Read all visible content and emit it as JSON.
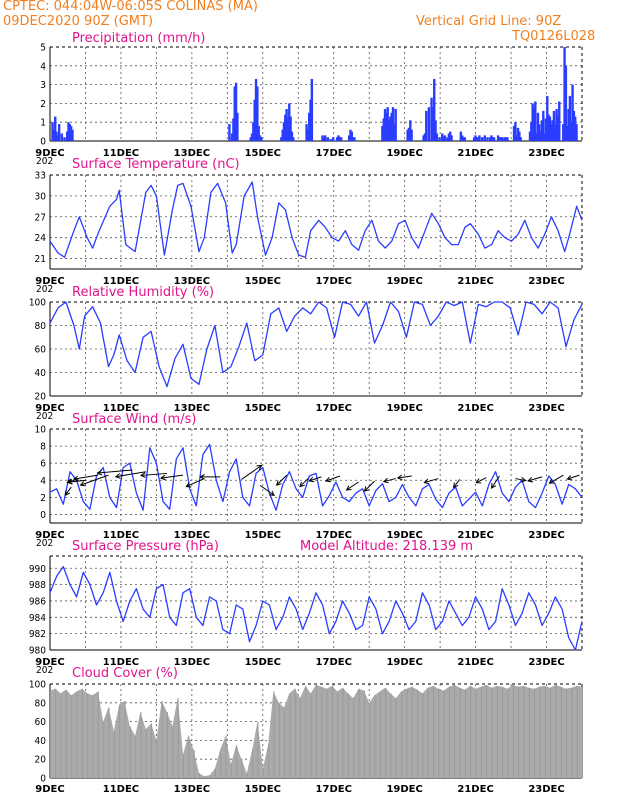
{
  "header": {
    "line1": "CPTEC:   044:04W-06:05S   COLINAS (MA)",
    "line2": "09DEC2020 90Z (GMT)",
    "grid_note": "Vertical Grid Line: 90Z",
    "code": "TQ0126L028"
  },
  "x_axis": {
    "day_labels": [
      "9DEC",
      "11DEC",
      "13DEC",
      "15DEC",
      "17DEC",
      "19DEC",
      "21DEC",
      "23DEC"
    ],
    "year_fragment": "202"
  },
  "chart_data": [
    {
      "type": "bar",
      "title": "Precipitation (mm/h)",
      "ylim": [
        0,
        5
      ],
      "yticks": [
        0,
        1,
        2,
        3,
        4,
        5
      ],
      "color": "#2a3dff",
      "x": [
        0.05,
        0.1,
        0.15,
        0.2,
        0.25,
        0.3,
        0.4,
        0.5,
        0.6,
        0.65,
        0.7,
        0.75,
        0.8,
        6.7,
        6.8,
        6.85,
        6.9,
        6.95,
        7.0,
        7.5,
        7.55,
        7.6,
        7.65,
        7.7,
        7.75,
        7.8,
        7.85,
        7.9,
        8.65,
        8.7,
        8.75,
        8.8,
        8.85,
        8.9,
        8.95,
        9.0,
        9.05,
        9.1,
        9.6,
        9.65,
        9.7,
        9.75,
        9.8,
        10.2,
        10.25,
        10.3,
        10.4,
        10.5,
        10.6,
        10.75,
        10.8,
        10.85,
        10.9,
        11.2,
        11.25,
        11.3,
        11.35,
        11.4,
        12.45,
        12.5,
        12.55,
        12.6,
        12.65,
        12.7,
        12.75,
        12.8,
        12.85,
        12.9,
        12.95,
        13.4,
        13.45,
        13.5,
        13.55,
        14.0,
        14.05,
        14.1,
        14.2,
        14.3,
        14.35,
        14.4,
        14.45,
        14.5,
        14.6,
        14.7,
        14.75,
        14.8,
        14.85,
        14.9,
        14.95,
        15.0,
        15.05,
        15.4,
        15.45,
        15.5,
        15.55,
        15.9,
        15.95,
        16.0,
        16.05,
        16.1,
        16.2,
        16.3,
        16.4,
        16.5,
        16.55,
        16.6,
        16.65,
        16.8,
        16.85,
        16.9,
        16.95,
        17.0,
        17.05,
        17.1,
        17.15,
        17.4,
        17.45,
        17.5,
        17.55,
        17.6,
        17.65,
        18.0,
        18.05,
        18.1,
        18.15,
        18.2,
        18.25,
        18.3,
        18.35,
        18.4,
        18.45,
        18.5,
        18.55,
        18.6,
        18.65,
        18.7,
        18.75,
        18.8,
        18.85,
        18.9,
        18.95,
        19.0,
        19.05,
        19.1,
        19.25,
        19.3,
        19.35,
        19.4,
        19.45,
        19.5,
        19.55,
        19.6,
        19.65,
        19.7,
        19.75
      ],
      "values": [
        1.0,
        0.6,
        1.3,
        0.5,
        0.3,
        0.9,
        0.4,
        0.2,
        0.5,
        1.0,
        0.9,
        0.8,
        0.6,
        0.9,
        0.4,
        1.2,
        2.9,
        3.1,
        1.5,
        0.2,
        0.4,
        1.0,
        2.2,
        3.3,
        2.9,
        0.8,
        0.3,
        0.2,
        0.2,
        0.6,
        1.0,
        1.4,
        1.7,
        1.2,
        2.0,
        1.3,
        0.5,
        0.2,
        0.9,
        0.6,
        1.5,
        2.2,
        3.3,
        0.3,
        0.2,
        0.3,
        0.2,
        0.1,
        0.2,
        0.2,
        0.3,
        0.2,
        0.2,
        0.3,
        0.6,
        0.5,
        0.2,
        0.2,
        0.8,
        1.2,
        1.7,
        1.5,
        1.8,
        1.1,
        1.3,
        1.5,
        1.8,
        0.9,
        1.7,
        0.6,
        0.7,
        1.1,
        0.6,
        0.3,
        0.4,
        1.6,
        1.8,
        2.3,
        1.8,
        3.3,
        1.1,
        0.4,
        0.2,
        0.4,
        0.2,
        0.3,
        0.1,
        0.2,
        0.4,
        0.5,
        0.3,
        0.5,
        0.3,
        0.2,
        0.2,
        0.2,
        0.3,
        0.2,
        0.2,
        0.3,
        0.2,
        0.3,
        0.2,
        0.2,
        0.3,
        0.2,
        0.2,
        0.3,
        0.2,
        0.2,
        0.2,
        0.1,
        0.2,
        0.2,
        0.2,
        0.8,
        1.0,
        0.3,
        0.7,
        0.5,
        0.2,
        0.5,
        1.0,
        2.0,
        1.8,
        2.1,
        0.4,
        1.5,
        0.9,
        0.5,
        1.1,
        1.6,
        0.4,
        1.2,
        2.4,
        1.4,
        1.3,
        0.9,
        1.1,
        1.6,
        0.9,
        1.7,
        1.3,
        2.1,
        0.9,
        5.0,
        4.0,
        0.8,
        1.7,
        2.4,
        1.0,
        3.0,
        1.6,
        1.3,
        0.9
      ]
    },
    {
      "type": "line",
      "title": "Surface Temperature (nC)",
      "ylim": [
        19.5,
        33
      ],
      "yticks": [
        21,
        24,
        27,
        30,
        33
      ],
      "color": "#2a3dff",
      "x": [
        0,
        0.3,
        0.55,
        0.9,
        1.1,
        1.4,
        1.6,
        1.85,
        2.25,
        2.5,
        2.6,
        2.85,
        3.2,
        3.6,
        3.8,
        4.0,
        4.3,
        4.6,
        4.8,
        5.0,
        5.3,
        5.6,
        5.8,
        6.05,
        6.3,
        6.6,
        6.85,
        7.0,
        7.3,
        7.6,
        7.8,
        8.1,
        8.35,
        8.6,
        8.85,
        9.1,
        9.35,
        9.6,
        9.8,
        10.1,
        10.35,
        10.6,
        10.85,
        11.1,
        11.35,
        11.6,
        11.85,
        12.1,
        12.35,
        12.6,
        12.85,
        13.1,
        13.35,
        13.6,
        13.85,
        14.1,
        14.35,
        14.6,
        14.85,
        15.1,
        15.35,
        15.6,
        15.8,
        16.1,
        16.35,
        16.6,
        16.85,
        17.1,
        17.35,
        17.6,
        17.85,
        18.1,
        18.35,
        18.6,
        18.85,
        19.1,
        19.35,
        19.5,
        19.8,
        20.0
      ],
      "values": [
        23.5,
        21.8,
        21.2,
        25.0,
        27.0,
        24.0,
        22.5,
        25.0,
        28.5,
        29.5,
        30.8,
        23.0,
        22.0,
        30.5,
        31.5,
        30.0,
        21.5,
        28.0,
        31.5,
        31.8,
        28.5,
        22.0,
        24.0,
        30.5,
        31.8,
        29.0,
        21.8,
        23.0,
        30.0,
        32.0,
        27.0,
        21.5,
        24.0,
        29.0,
        28.0,
        24.0,
        21.5,
        21.2,
        25.0,
        26.5,
        25.5,
        24.0,
        23.5,
        25.0,
        23.0,
        22.2,
        25.0,
        26.5,
        23.5,
        22.5,
        23.5,
        26.0,
        26.5,
        24.0,
        22.5,
        25.0,
        27.5,
        26.0,
        24.0,
        23.0,
        23.0,
        25.5,
        26.0,
        24.5,
        22.5,
        23.0,
        25.0,
        24.0,
        23.5,
        24.5,
        26.5,
        24.0,
        22.5,
        24.5,
        27.0,
        25.0,
        22.0,
        24.0,
        28.5,
        26.5
      ]
    },
    {
      "type": "line",
      "title": "Relative Humidity (%)",
      "ylim": [
        20,
        100
      ],
      "yticks": [
        20,
        40,
        60,
        80,
        100
      ],
      "color": "#2a3dff",
      "x": [
        0,
        0.3,
        0.6,
        0.9,
        1.1,
        1.3,
        1.6,
        1.9,
        2.2,
        2.4,
        2.6,
        2.9,
        3.2,
        3.5,
        3.8,
        4.1,
        4.4,
        4.7,
        5.0,
        5.3,
        5.6,
        5.9,
        6.2,
        6.5,
        6.8,
        7.1,
        7.4,
        7.7,
        8.0,
        8.3,
        8.6,
        8.9,
        9.2,
        9.5,
        9.8,
        10.1,
        10.4,
        10.7,
        11.0,
        11.3,
        11.6,
        11.9,
        12.2,
        12.5,
        12.8,
        13.1,
        13.4,
        13.7,
        14.0,
        14.3,
        14.6,
        14.9,
        15.2,
        15.5,
        15.8,
        16.1,
        16.4,
        16.7,
        17.0,
        17.3,
        17.6,
        17.9,
        18.2,
        18.5,
        18.8,
        19.1,
        19.4,
        19.7,
        20.0
      ],
      "values": [
        82,
        95,
        100,
        80,
        60,
        88,
        96,
        82,
        45,
        55,
        72,
        50,
        40,
        70,
        75,
        45,
        28,
        52,
        64,
        35,
        30,
        60,
        80,
        40,
        45,
        62,
        82,
        50,
        55,
        90,
        95,
        75,
        88,
        95,
        90,
        100,
        95,
        70,
        100,
        98,
        88,
        100,
        65,
        80,
        100,
        92,
        70,
        100,
        98,
        80,
        88,
        100,
        97,
        100,
        65,
        98,
        96,
        100,
        100,
        95,
        72,
        100,
        98,
        90,
        100,
        95,
        62,
        85,
        98
      ]
    },
    {
      "type": "line",
      "title": "Surface Wind (m/s)",
      "ylim": [
        -1,
        10
      ],
      "yticks": [
        0,
        2,
        4,
        6,
        8,
        10
      ],
      "color": "#2a3dff",
      "x": [
        0,
        0.25,
        0.5,
        0.75,
        1.0,
        1.25,
        1.5,
        1.75,
        2.0,
        2.25,
        2.5,
        2.75,
        3.0,
        3.25,
        3.5,
        3.75,
        4.0,
        4.25,
        4.5,
        4.75,
        5.0,
        5.25,
        5.5,
        5.75,
        6.0,
        6.25,
        6.5,
        6.75,
        7.0,
        7.25,
        7.5,
        7.75,
        8.0,
        8.25,
        8.5,
        8.75,
        9.0,
        9.25,
        9.5,
        9.75,
        10.0,
        10.25,
        10.5,
        10.75,
        11.0,
        11.25,
        11.5,
        11.75,
        12.0,
        12.25,
        12.5,
        12.75,
        13.0,
        13.25,
        13.5,
        13.75,
        14.0,
        14.25,
        14.5,
        14.75,
        15.0,
        15.25,
        15.5,
        15.75,
        16.0,
        16.25,
        16.5,
        16.75,
        17.0,
        17.25,
        17.5,
        17.75,
        18.0,
        18.25,
        18.5,
        18.75,
        19.0,
        19.25,
        19.5,
        19.75,
        20.0
      ],
      "values": [
        2.6,
        3.0,
        1.2,
        5.0,
        4.0,
        1.5,
        0.6,
        4.5,
        5.5,
        2.0,
        0.8,
        5.5,
        6.0,
        2.5,
        0.5,
        7.8,
        6.0,
        1.5,
        0.6,
        6.5,
        7.8,
        3.0,
        1.0,
        7.0,
        8.2,
        4.0,
        1.5,
        5.0,
        6.5,
        2.0,
        1.0,
        4.8,
        5.5,
        2.5,
        0.5,
        3.5,
        5.0,
        3.0,
        2.0,
        4.5,
        4.8,
        1.0,
        2.2,
        3.8,
        2.0,
        1.5,
        2.5,
        3.0,
        1.0,
        2.8,
        3.6,
        1.5,
        2.0,
        3.5,
        2.0,
        1.0,
        3.0,
        3.5,
        1.8,
        0.8,
        2.5,
        3.2,
        1.0,
        1.8,
        2.6,
        1.0,
        3.5,
        5.0,
        2.5,
        1.5,
        3.2,
        4.0,
        1.5,
        0.8,
        2.5,
        4.5,
        3.5,
        1.2,
        3.5,
        3.0,
        2.0
      ],
      "arrows_x": [
        0.8,
        1.1,
        1.35,
        1.8,
        2.2,
        3.1,
        3.6,
        4.4,
        5.0,
        5.8,
        6.4,
        7.2,
        7.9,
        8.9,
        9.7,
        10.2,
        10.9,
        11.6,
        12.2,
        13.0,
        13.6,
        14.6,
        15.4,
        16.4,
        16.9,
        17.5,
        18.5,
        19.3,
        19.9
      ],
      "arrows_speed": [
        3.2,
        4.2,
        4.0,
        4.6,
        4.6,
        5.2,
        5.0,
        4.8,
        4.6,
        4.2,
        4.4,
        4.1,
        3.4,
        4.6,
        4.2,
        4.4,
        4.5,
        3.8,
        3.9,
        4.2,
        4.5,
        4.2,
        4.1,
        4.3,
        4.5,
        4.2,
        4.4,
        4.6,
        4.6
      ],
      "arrows_dx": [
        -6,
        -12,
        -18,
        -24,
        -28,
        -35,
        -30,
        -26,
        -22,
        -18,
        -20,
        20,
        14,
        -10,
        -8,
        -12,
        -14,
        -12,
        -10,
        -12,
        -14,
        -14,
        -6,
        -10,
        -8,
        10,
        -14,
        -14,
        -12
      ],
      "arrows_dy": [
        8,
        4,
        2,
        4,
        10,
        3,
        5,
        2,
        3,
        8,
        0,
        -14,
        10,
        10,
        8,
        4,
        5,
        8,
        10,
        3,
        2,
        4,
        8,
        5,
        12,
        2,
        4,
        8,
        4
      ]
    },
    {
      "type": "line",
      "title": "Surface Pressure (hPa)",
      "ylim": [
        980,
        991.5
      ],
      "yticks": [
        980,
        982,
        984,
        986,
        988,
        990
      ],
      "color": "#2a3dff",
      "x": [
        0,
        0.25,
        0.5,
        0.75,
        1.0,
        1.25,
        1.5,
        1.75,
        2.0,
        2.25,
        2.5,
        2.75,
        3.0,
        3.25,
        3.5,
        3.75,
        4.0,
        4.25,
        4.5,
        4.75,
        5.0,
        5.25,
        5.5,
        5.75,
        6.0,
        6.25,
        6.5,
        6.75,
        7.0,
        7.25,
        7.5,
        7.75,
        8.0,
        8.25,
        8.5,
        8.75,
        9.0,
        9.25,
        9.5,
        9.75,
        10.0,
        10.25,
        10.5,
        10.75,
        11.0,
        11.25,
        11.5,
        11.75,
        12.0,
        12.25,
        12.5,
        12.75,
        13.0,
        13.25,
        13.5,
        13.75,
        14.0,
        14.25,
        14.5,
        14.75,
        15.0,
        15.25,
        15.5,
        15.75,
        16.0,
        16.25,
        16.5,
        16.75,
        17.0,
        17.25,
        17.5,
        17.75,
        18.0,
        18.25,
        18.5,
        18.75,
        19.0,
        19.25,
        19.5,
        19.75,
        20.0
      ],
      "values": [
        987.0,
        989.0,
        990.2,
        988.0,
        986.5,
        989.5,
        988.0,
        985.5,
        987.0,
        989.5,
        986.0,
        983.5,
        986.0,
        987.5,
        985.0,
        984.0,
        987.5,
        988.0,
        984.0,
        983.0,
        987.0,
        987.5,
        984.0,
        983.0,
        986.5,
        986.0,
        982.5,
        982.0,
        985.5,
        985.0,
        981.0,
        983.0,
        986.0,
        985.5,
        982.5,
        984.0,
        986.5,
        985.0,
        982.5,
        984.5,
        987.0,
        985.5,
        982.0,
        983.5,
        986.0,
        984.5,
        982.5,
        983.0,
        986.5,
        985.0,
        982.0,
        983.5,
        986.0,
        984.5,
        982.5,
        983.5,
        987.0,
        985.5,
        982.5,
        983.5,
        986.0,
        984.5,
        983.0,
        984.0,
        986.5,
        985.0,
        982.5,
        983.5,
        987.5,
        985.5,
        983.0,
        984.5,
        987.0,
        985.5,
        983.0,
        984.5,
        986.5,
        985.0,
        981.5,
        980.0,
        983.5
      ]
    },
    {
      "type": "area",
      "title": "Cloud Cover (%)",
      "ylim": [
        0,
        100
      ],
      "yticks": [
        0,
        20,
        40,
        60,
        80,
        100
      ],
      "color": "#aaaaaa",
      "x": [
        0,
        0.2,
        0.4,
        0.6,
        0.8,
        1.0,
        1.2,
        1.4,
        1.6,
        1.8,
        2.0,
        2.2,
        2.4,
        2.6,
        2.8,
        3.0,
        3.2,
        3.4,
        3.6,
        3.8,
        4.0,
        4.2,
        4.4,
        4.6,
        4.8,
        5.0,
        5.2,
        5.4,
        5.6,
        5.8,
        6.0,
        6.2,
        6.4,
        6.6,
        6.8,
        7.0,
        7.2,
        7.4,
        7.6,
        7.8,
        8.0,
        8.2,
        8.4,
        8.6,
        8.8,
        9.0,
        9.2,
        9.4,
        9.6,
        9.8,
        10.0,
        10.2,
        10.4,
        10.6,
        10.8,
        11.0,
        11.2,
        11.4,
        11.6,
        11.8,
        12.0,
        12.2,
        12.4,
        12.6,
        12.8,
        13.0,
        13.2,
        13.4,
        13.6,
        13.8,
        14.0,
        14.2,
        14.4,
        14.6,
        14.8,
        15.0,
        15.2,
        15.4,
        15.6,
        15.8,
        16.0,
        16.2,
        16.4,
        16.6,
        16.8,
        17.0,
        17.2,
        17.4,
        17.6,
        17.8,
        18.0,
        18.2,
        18.4,
        18.6,
        18.8,
        19.0,
        19.2,
        19.4,
        19.6,
        19.8,
        20.0
      ],
      "values": [
        93,
        95,
        90,
        94,
        88,
        92,
        95,
        90,
        88,
        92,
        60,
        75,
        50,
        78,
        82,
        55,
        45,
        70,
        52,
        58,
        40,
        82,
        70,
        55,
        85,
        25,
        45,
        30,
        5,
        2,
        3,
        10,
        30,
        45,
        15,
        35,
        20,
        5,
        30,
        60,
        10,
        35,
        92,
        80,
        75,
        90,
        95,
        85,
        98,
        90,
        99,
        97,
        95,
        98,
        92,
        96,
        90,
        85,
        95,
        93,
        80,
        88,
        92,
        96,
        90,
        85,
        92,
        95,
        97,
        94,
        90,
        96,
        98,
        95,
        93,
        97,
        99,
        96,
        94,
        98,
        95,
        97,
        99,
        96,
        98,
        97,
        95,
        99,
        97,
        98,
        96,
        95,
        97,
        98,
        96,
        99,
        97,
        95,
        96,
        98,
        97
      ]
    }
  ],
  "pressure_extra": {
    "model_altitude": "Model Altitude: 218.139 m"
  }
}
